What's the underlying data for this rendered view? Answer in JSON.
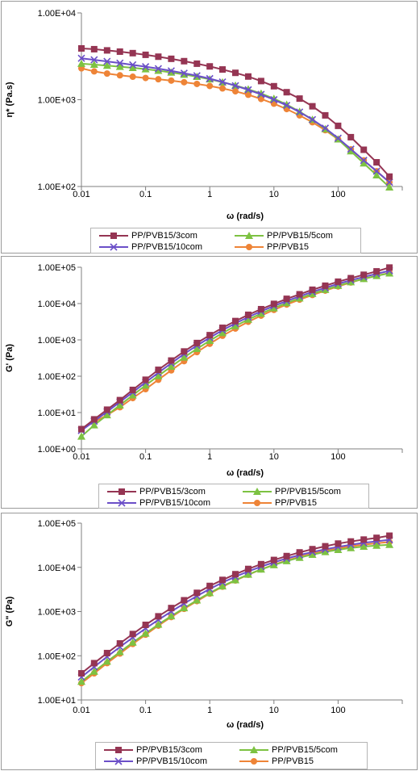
{
  "chart_data": [
    {
      "type": "line",
      "ylabel": "η* (Pa.s)",
      "xlabel": "ω (rad/s)",
      "xscale": "log",
      "yscale": "log",
      "xlim": [
        0.01,
        1000
      ],
      "ylim": [
        100,
        10000
      ],
      "x_ticks": [
        "0.01",
        "0.1",
        "1",
        "10",
        "100"
      ],
      "y_ticks": [
        "1.00E+02",
        "1.00E+03",
        "1.00E+04"
      ],
      "grid": false,
      "legend": "bottom",
      "x": [
        0.01,
        0.0158,
        0.0251,
        0.0398,
        0.0631,
        0.1,
        0.158,
        0.251,
        0.398,
        0.631,
        1,
        1.58,
        2.51,
        3.98,
        6.31,
        10,
        15.8,
        25.1,
        39.8,
        63.1,
        100,
        158,
        251,
        398,
        631
      ],
      "series": [
        {
          "name": "PP/PVB15/3com",
          "marker": "square",
          "color": "#953553",
          "values": [
            3900,
            3820,
            3700,
            3580,
            3440,
            3290,
            3130,
            2960,
            2780,
            2600,
            2420,
            2230,
            2040,
            1850,
            1640,
            1430,
            1220,
            1030,
            840,
            660,
            500,
            370,
            265,
            190,
            130
          ]
        },
        {
          "name": "PP/PVB15/5com",
          "marker": "triangle",
          "color": "#7dc242",
          "values": [
            2600,
            2540,
            2470,
            2400,
            2330,
            2250,
            2160,
            2060,
            1950,
            1840,
            1720,
            1590,
            1460,
            1320,
            1180,
            1030,
            880,
            730,
            590,
            460,
            350,
            255,
            185,
            135,
            98
          ]
        },
        {
          "name": "PP/PVB15/10com",
          "marker": "x",
          "color": "#6b4fc8",
          "values": [
            3000,
            2880,
            2760,
            2640,
            2520,
            2400,
            2280,
            2150,
            2020,
            1890,
            1750,
            1600,
            1450,
            1300,
            1150,
            1000,
            860,
            720,
            590,
            470,
            360,
            270,
            200,
            150,
            112
          ]
        },
        {
          "name": "PP/PVB15",
          "marker": "circle",
          "color": "#ee8437",
          "values": [
            2300,
            2120,
            2000,
            1910,
            1840,
            1780,
            1720,
            1660,
            1590,
            1520,
            1440,
            1350,
            1250,
            1140,
            1020,
            900,
            780,
            660,
            550,
            445,
            350,
            268,
            200,
            150,
            112
          ]
        }
      ]
    },
    {
      "type": "line",
      "ylabel": "G' (Pa)",
      "xlabel": "ω (rad/s)",
      "xscale": "log",
      "yscale": "log",
      "xlim": [
        0.01,
        1000
      ],
      "ylim": [
        1,
        100000
      ],
      "x_ticks": [
        "0.01",
        "0.1",
        "1",
        "10",
        "100"
      ],
      "y_ticks": [
        "1.00E+00",
        "1.00E+01",
        "1.00E+02",
        "1.00E+03",
        "1.00E+04",
        "1.00E+05"
      ],
      "grid": false,
      "legend": "bottom",
      "x": [
        0.01,
        0.0158,
        0.0251,
        0.0398,
        0.0631,
        0.1,
        0.158,
        0.251,
        0.398,
        0.631,
        1,
        1.58,
        2.51,
        3.98,
        6.31,
        10,
        15.8,
        25.1,
        39.8,
        63.1,
        100,
        158,
        251,
        398,
        631
      ],
      "series": [
        {
          "name": "PP/PVB15/3com",
          "marker": "square",
          "color": "#953553",
          "values": [
            3.5,
            6.5,
            12,
            22,
            42,
            80,
            150,
            270,
            480,
            820,
            1350,
            2150,
            3300,
            4900,
            7000,
            9800,
            13500,
            18000,
            24000,
            31000,
            40000,
            50000,
            62000,
            77000,
            98000
          ]
        },
        {
          "name": "PP/PVB15/5com",
          "marker": "triangle",
          "color": "#7dc242",
          "values": [
            2.2,
            4.5,
            8.5,
            16,
            30,
            56,
            102,
            185,
            330,
            570,
            950,
            1550,
            2420,
            3650,
            5300,
            7500,
            10400,
            14000,
            18600,
            24000,
            31000,
            39000,
            48000,
            58000,
            68000
          ]
        },
        {
          "name": "PP/PVB15/10com",
          "marker": "x",
          "color": "#6b4fc8",
          "values": [
            3.2,
            5.8,
            10.5,
            19.5,
            36,
            68,
            125,
            228,
            410,
            700,
            1150,
            1850,
            2850,
            4250,
            6100,
            8600,
            11800,
            15800,
            21000,
            27000,
            35000,
            44000,
            54000,
            66000,
            80000
          ]
        },
        {
          "name": "PP/PVB15",
          "marker": "circle",
          "color": "#ee8437",
          "values": [
            3.5,
            5.5,
            8.5,
            14,
            25,
            44,
            80,
            145,
            260,
            460,
            780,
            1300,
            2050,
            3150,
            4650,
            6700,
            9400,
            12800,
            17200,
            22700,
            29500,
            38000,
            48000,
            58000,
            70000
          ]
        }
      ]
    },
    {
      "type": "line",
      "ylabel": "G\" (Pa)",
      "xlabel": "ω (rad/s)",
      "xscale": "log",
      "yscale": "log",
      "xlim": [
        0.01,
        1000
      ],
      "ylim": [
        10,
        100000
      ],
      "x_ticks": [
        "0.01",
        "0.1",
        "1",
        "10",
        "100"
      ],
      "y_ticks": [
        "1.00E+01",
        "1.00E+02",
        "1.00E+03",
        "1.00E+04",
        "1.00E+05"
      ],
      "grid": false,
      "legend": "bottom",
      "x": [
        0.01,
        0.0158,
        0.0251,
        0.0398,
        0.0631,
        0.1,
        0.158,
        0.251,
        0.398,
        0.631,
        1,
        1.58,
        2.51,
        3.98,
        6.31,
        10,
        15.8,
        25.1,
        39.8,
        63.1,
        100,
        158,
        251,
        398,
        631
      ],
      "series": [
        {
          "name": "PP/PVB15/3com",
          "marker": "square",
          "color": "#953553",
          "values": [
            40,
            68,
            115,
            190,
            310,
            500,
            780,
            1200,
            1800,
            2650,
            3800,
            5200,
            7000,
            9200,
            11800,
            14700,
            18000,
            21800,
            25800,
            30000,
            34500,
            38500,
            42500,
            46500,
            52000
          ]
        },
        {
          "name": "PP/PVB15/5com",
          "marker": "triangle",
          "color": "#7dc242",
          "values": [
            26,
            44,
            74,
            122,
            200,
            320,
            510,
            790,
            1200,
            1800,
            2650,
            3750,
            5150,
            6900,
            9000,
            11300,
            13900,
            16600,
            19400,
            22300,
            25000,
            27400,
            29500,
            31200,
            32500
          ]
        },
        {
          "name": "PP/PVB15/10com",
          "marker": "x",
          "color": "#6b4fc8",
          "values": [
            33,
            56,
            95,
            158,
            258,
            415,
            650,
            1000,
            1520,
            2250,
            3250,
            4550,
            6150,
            8100,
            10400,
            13000,
            15900,
            19000,
            22200,
            25600,
            29000,
            32500,
            35800,
            38800,
            42000
          ]
        },
        {
          "name": "PP/PVB15",
          "marker": "circle",
          "color": "#ee8437",
          "values": [
            24,
            40,
            68,
            112,
            185,
            300,
            480,
            750,
            1150,
            1720,
            2550,
            3650,
            5050,
            6800,
            9000,
            11500,
            14300,
            17300,
            20400,
            23600,
            26800,
            29800,
            32600,
            35200,
            37500
          ]
        }
      ]
    }
  ]
}
